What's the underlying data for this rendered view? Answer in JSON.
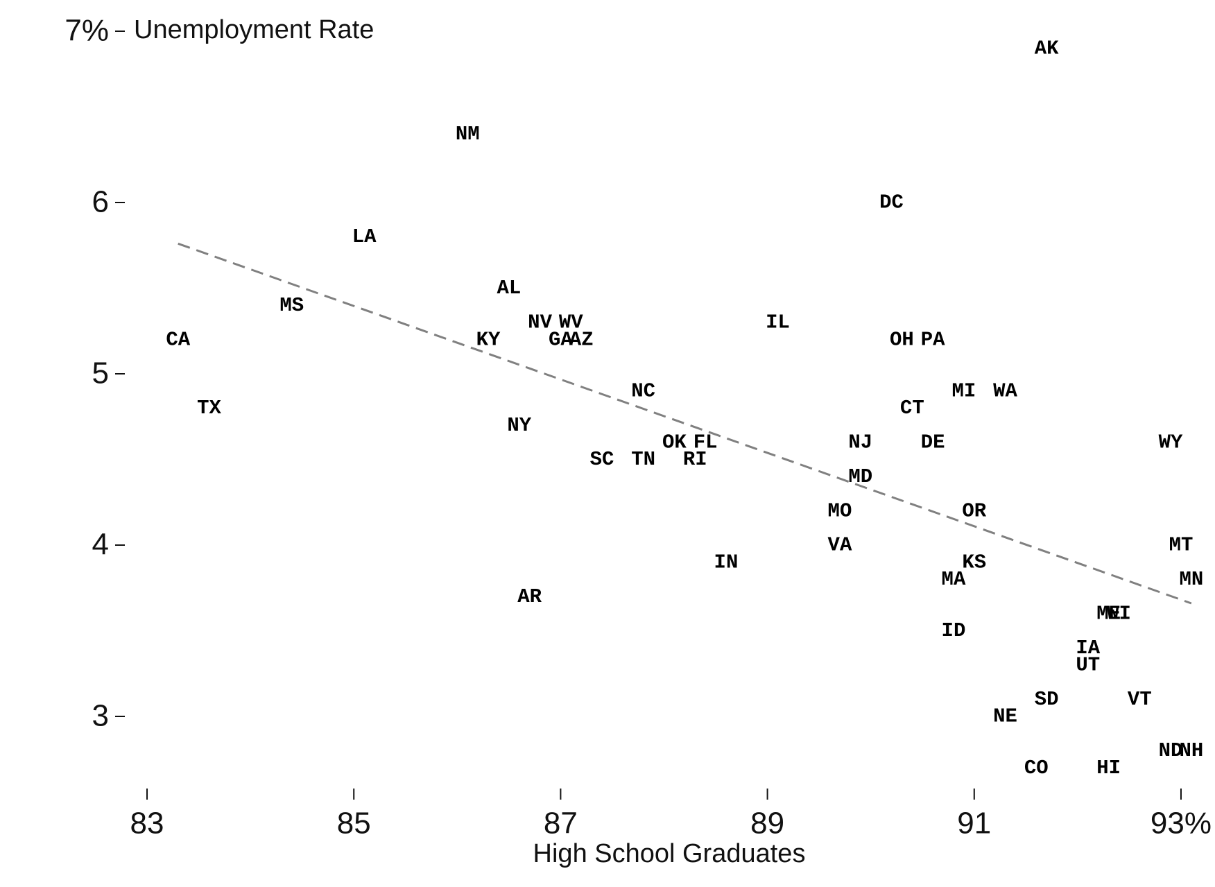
{
  "chart_data": {
    "type": "text-scatter",
    "y_label": "Unemployment Rate",
    "x_label": "High School Graduates",
    "labels": [
      "AK",
      "NM",
      "DC",
      "LA",
      "AL",
      "MS",
      "NV",
      "WV",
      "IL",
      "CA",
      "KY",
      "GA",
      "AZ",
      "OH",
      "PA",
      "NC",
      "MI",
      "WA",
      "TX",
      "CT",
      "NY",
      "OK",
      "FL",
      "NJ",
      "DE",
      "WY",
      "SC",
      "TN",
      "RI",
      "MD",
      "MO",
      "OR",
      "VA",
      "MT",
      "IN",
      "KS",
      "MA",
      "MN",
      "AR",
      "ME",
      "WI",
      "ID",
      "IA",
      "UT",
      "SD",
      "VT",
      "NE",
      "ND",
      "NH",
      "CO",
      "HI"
    ],
    "x": [
      91.7,
      86.1,
      90.2,
      85.1,
      86.5,
      84.4,
      86.8,
      87.1,
      89.1,
      83.3,
      86.3,
      87.0,
      87.2,
      90.3,
      90.6,
      87.8,
      90.9,
      91.3,
      83.6,
      90.4,
      86.6,
      88.1,
      88.4,
      89.9,
      90.6,
      92.9,
      87.4,
      87.8,
      88.3,
      89.9,
      89.7,
      91.0,
      89.7,
      93.0,
      88.6,
      91.0,
      90.8,
      93.1,
      86.7,
      92.3,
      92.4,
      90.8,
      92.1,
      92.1,
      91.7,
      92.6,
      91.3,
      92.9,
      93.1,
      91.6,
      92.3
    ],
    "y": [
      6.9,
      6.4,
      6.0,
      5.8,
      5.5,
      5.4,
      5.3,
      5.3,
      5.3,
      5.2,
      5.2,
      5.2,
      5.2,
      5.2,
      5.2,
      4.9,
      4.9,
      4.9,
      4.8,
      4.8,
      4.7,
      4.6,
      4.6,
      4.6,
      4.6,
      4.6,
      4.5,
      4.5,
      4.5,
      4.4,
      4.2,
      4.2,
      4.0,
      4.0,
      3.9,
      3.9,
      3.8,
      3.8,
      3.7,
      3.6,
      3.6,
      3.5,
      3.4,
      3.3,
      3.1,
      3.1,
      3.0,
      2.8,
      2.8,
      2.7,
      2.7
    ],
    "color": "#000000",
    "trendline": {
      "x": [
        83.3,
        93.1
      ],
      "y": [
        5.76,
        3.66
      ],
      "color": "#808080",
      "dashed": true
    },
    "xlim": [
      82.6,
      93.3
    ],
    "ylim": [
      2.6,
      7.1
    ],
    "xticks": [
      83,
      85,
      87,
      89,
      91,
      {
        "value": 93,
        "label": "93%"
      }
    ],
    "yticks": [
      3,
      4,
      5,
      6,
      {
        "value": 7,
        "label": "7%"
      }
    ]
  }
}
